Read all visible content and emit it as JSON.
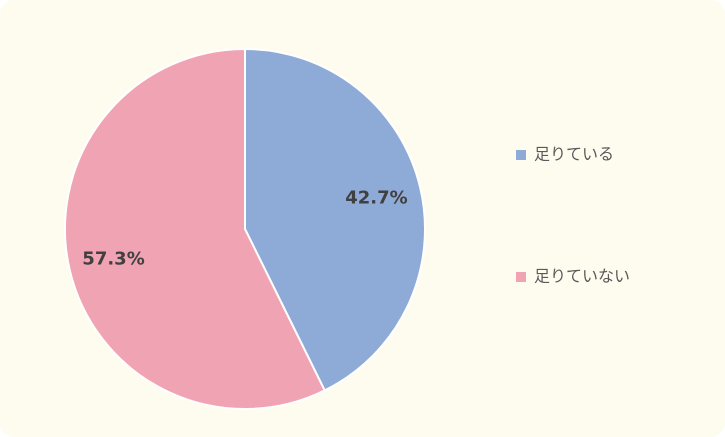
{
  "chart_data": {
    "type": "pie",
    "categories": [
      "足りている",
      "足りていない"
    ],
    "values": [
      42.7,
      57.3
    ],
    "value_labels": [
      "42.7%",
      "57.3%"
    ],
    "colors": [
      "#8eaad6",
      "#f0a3b3"
    ],
    "legend": "right"
  }
}
